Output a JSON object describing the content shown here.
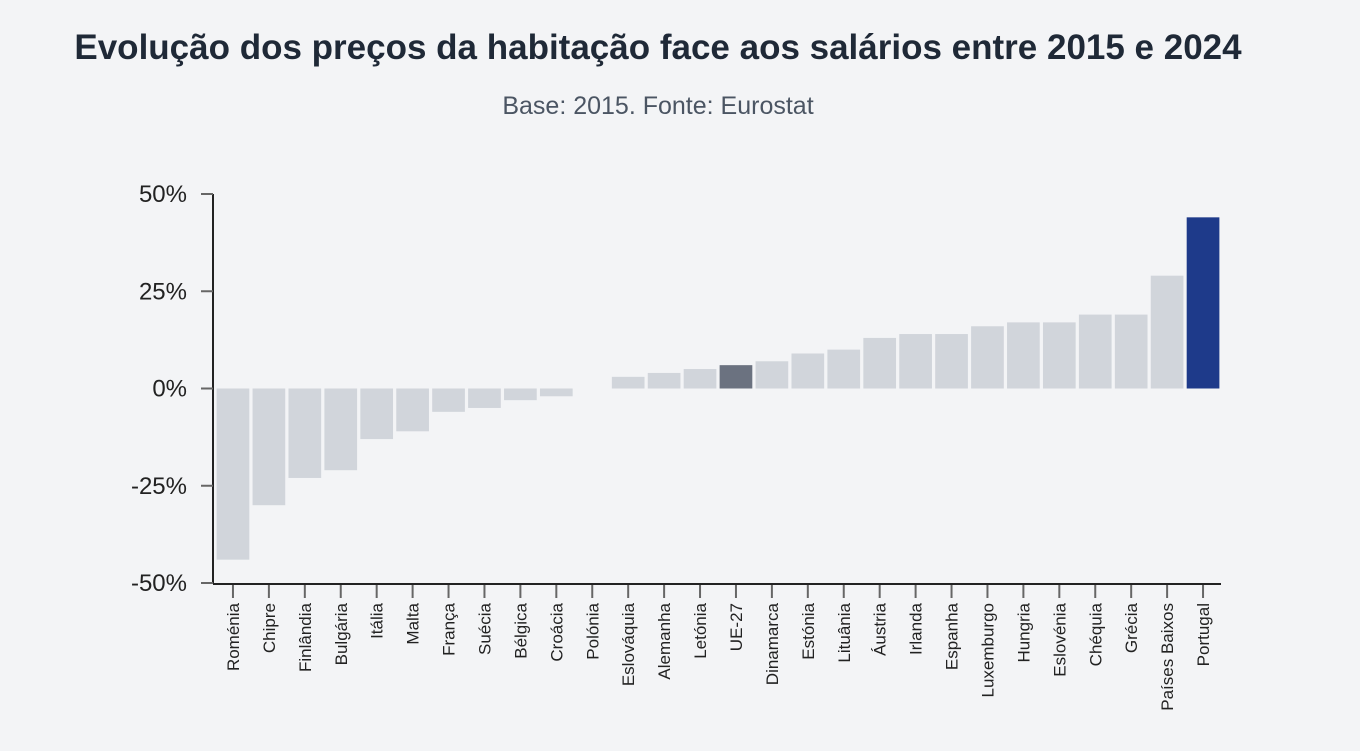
{
  "chart_data": {
    "type": "bar",
    "title": "Evolução dos preços da habitação face aos salários entre 2015 e 2024",
    "subtitle": "Base: 2015. Fonte: Eurostat",
    "xlabel": "",
    "ylabel": "",
    "ylim": [
      -50,
      50
    ],
    "yticks": [
      "50%",
      "25%",
      "0%",
      "-25%",
      "-50%"
    ],
    "ytick_values": [
      50,
      25,
      0,
      -25,
      -50
    ],
    "grid": false,
    "categories": [
      "Roménia",
      "Chipre",
      "Finlândia",
      "Bulgária",
      "Itália",
      "Malta",
      "França",
      "Suécia",
      "Bélgica",
      "Croácia",
      "Polónia",
      "Eslováquia",
      "Alemanha",
      "Letónia",
      "UE-27",
      "Dinamarca",
      "Estónia",
      "Lituânia",
      "Áustria",
      "Irlanda",
      "Espanha",
      "Luxemburgo",
      "Hungria",
      "Eslovénia",
      "Chéquia",
      "Grécia",
      "Países Baixos",
      "Portugal"
    ],
    "values": [
      -44,
      -30,
      -23,
      -21,
      -13,
      -11,
      -6,
      -5,
      -3,
      -2,
      0,
      3,
      4,
      5,
      6,
      7,
      9,
      10,
      13,
      14,
      14,
      16,
      17,
      17,
      19,
      19,
      29,
      44
    ],
    "colors": {
      "default": "#d1d5db",
      "UE-27": "#6b7280",
      "Portugal": "#1e3a8a"
    }
  }
}
